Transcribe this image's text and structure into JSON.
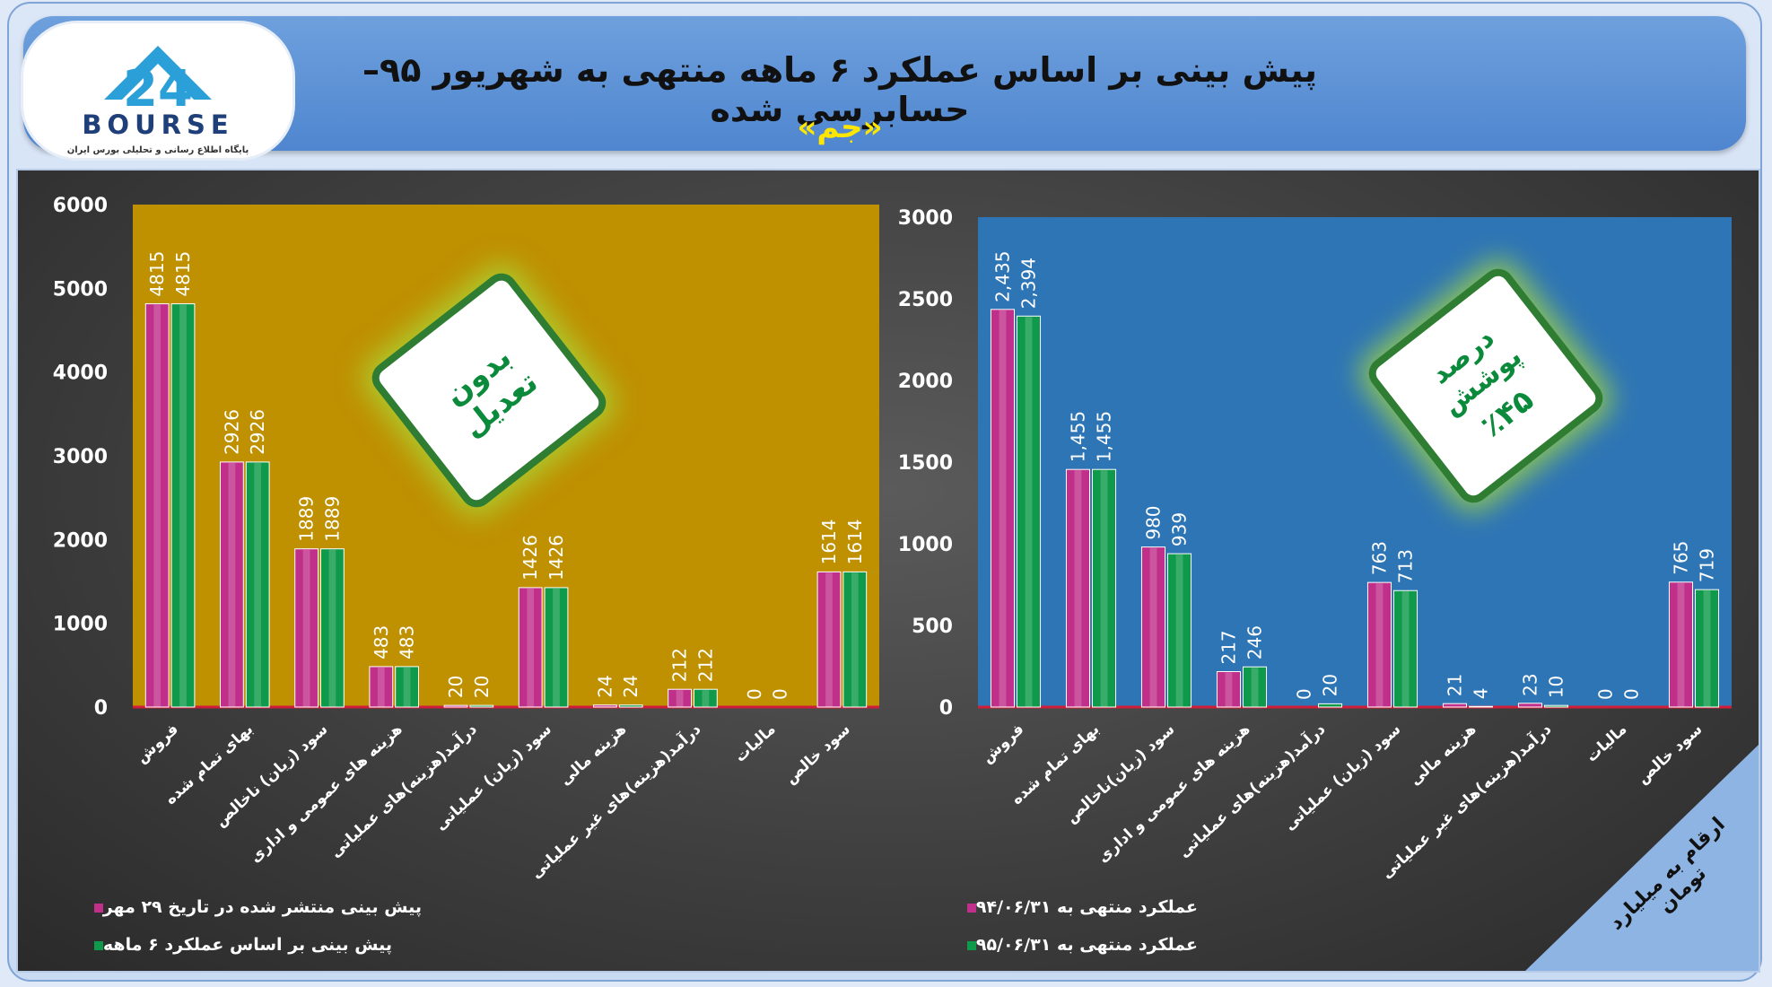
{
  "header": {
    "title": "پیش بینی بر اساس عملکرد ۶ ماهه منتهی به شهریور ۹۵–حسابرسی شده",
    "subtitle": "«جم»",
    "logo_number": "24",
    "logo_text": "BOURSE",
    "logo_tagline": "پایگاه اطلاع رسانی و تحلیلی بورس ایران"
  },
  "colors": {
    "magenta": "#c0308a",
    "green": "#0e9a4a",
    "left_plot_bg": "#bf9000",
    "right_plot_bg": "#2e75b6",
    "badge_text": "#0b8a3b"
  },
  "left_badge": {
    "text": "بدون تعدیل"
  },
  "right_badge": {
    "line1": "درصد پوشش",
    "line2": "٪۴۵"
  },
  "corner_note": "ارقام به میلیارد تومان",
  "chart_data": [
    {
      "type": "bar",
      "categories": [
        "فروش",
        "بهای تمام شده",
        "سود (زیان) ناخالص",
        "هزینه های عمومی و اداری",
        "درآمد(هزینه)های عملیاتی",
        "سود (زیان) عملیاتی",
        "هزینه مالی",
        "درآمد(هزینه)های غیر عملیاتی",
        "مالیات",
        "سود خالص"
      ],
      "series": [
        {
          "name": "پیش بینی منتشر شده در تاریخ ۲۹ مهر",
          "values": [
            4815,
            2926,
            1889,
            483,
            20,
            1426,
            24,
            212,
            0,
            1614
          ],
          "labels": [
            "4815",
            "2926",
            "1889",
            "483",
            "20",
            "1426",
            "24",
            "212",
            "0",
            "1614"
          ],
          "color": "#c0308a"
        },
        {
          "name": "پیش بینی بر اساس عملکرد ۶ ماهه",
          "values": [
            4815,
            2926,
            1889,
            483,
            20,
            1426,
            24,
            212,
            0,
            1614
          ],
          "labels": [
            "4815",
            "2926",
            "1889",
            "483",
            "20",
            "1426",
            "24",
            "212",
            "0",
            "1614"
          ],
          "color": "#0e9a4a"
        }
      ],
      "ylim": [
        0,
        6000
      ],
      "yticks": [
        "0",
        "1000",
        "2000",
        "3000",
        "4000",
        "5000",
        "6000"
      ],
      "ytick_values": [
        0,
        1000,
        2000,
        3000,
        4000,
        5000,
        6000
      ],
      "legend": "bottom"
    },
    {
      "type": "bar",
      "categories": [
        "فروش",
        "بهای تمام شده",
        "سود (زیان)ناخالص",
        "هزینه های عمومی و اداری",
        "درآمد(هزینه)های عملیاتی",
        "سود (زیان) عملیاتی",
        "هزینه مالی",
        "درآمد(هزینه)های غیر عملیاتی",
        "مالیات",
        "سود خالص"
      ],
      "series": [
        {
          "name": "عملکرد منتهی به ۹۴/۰۶/۳۱",
          "values": [
            2435,
            1455,
            980,
            217,
            0,
            763,
            21,
            23,
            0,
            765
          ],
          "labels": [
            "2,435",
            "1,455",
            "980",
            "217",
            "0",
            "763",
            "21",
            "23",
            "0",
            "765"
          ],
          "color": "#c0308a"
        },
        {
          "name": "عملکرد منتهی به ۹۵/۰۶/۳۱",
          "values": [
            2394,
            1455,
            939,
            246,
            20,
            713,
            4,
            10,
            0,
            719
          ],
          "labels": [
            "2,394",
            "1,455",
            "939",
            "246",
            "20",
            "713",
            "4",
            "10",
            "0",
            "719"
          ],
          "color": "#0e9a4a"
        }
      ],
      "ylim": [
        0,
        3000
      ],
      "yticks": [
        "0",
        "500",
        "1000",
        "1500",
        "2000",
        "2500",
        "3000"
      ],
      "ytick_values": [
        0,
        500,
        1000,
        1500,
        2000,
        2500,
        3000
      ],
      "legend": "bottom"
    }
  ]
}
